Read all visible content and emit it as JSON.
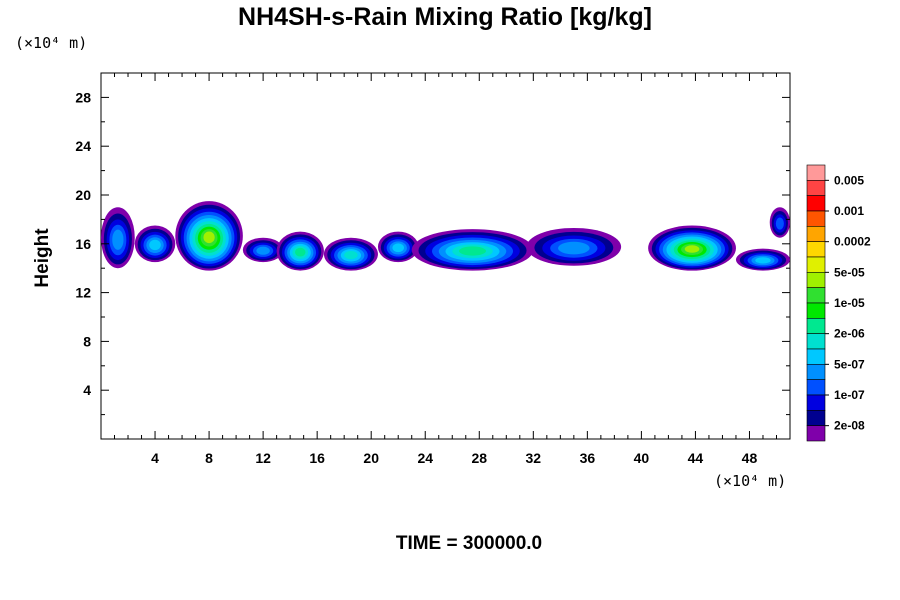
{
  "chart_data": {
    "type": "heatmap",
    "title": "NH4SH-s-Rain Mixing Ratio [kg/kg]",
    "xlabel": "",
    "ylabel": "Height",
    "x_unit": "(×10⁴ m)",
    "y_unit": "(×10⁴ m)",
    "xlim": [
      0,
      51
    ],
    "ylim": [
      0,
      30
    ],
    "x_ticks": [
      "4",
      "8",
      "12",
      "16",
      "20",
      "24",
      "28",
      "32",
      "36",
      "40",
      "44",
      "48"
    ],
    "y_ticks": [
      "4",
      "8",
      "12",
      "16",
      "20",
      "24",
      "28"
    ],
    "time_label": "TIME = 300000.0",
    "legend_labels": [
      "0.005",
      "0.001",
      "0.0002",
      "5e-05",
      "1e-05",
      "2e-06",
      "5e-07",
      "1e-07",
      "2e-08"
    ],
    "colorbar_colors": [
      "#ff9999",
      "#ff4444",
      "#ff0000",
      "#ff5500",
      "#ffa500",
      "#ffd700",
      "#e0f000",
      "#a0f000",
      "#30e030",
      "#00e800",
      "#00e890",
      "#00e0d0",
      "#00c8ff",
      "#0090ff",
      "#0050ff",
      "#0000e0",
      "#000090",
      "#7f00aa"
    ],
    "cloud_bands": [
      {
        "x": [
          0,
          2.5
        ],
        "y": [
          14.0,
          19.0
        ],
        "peak_level": 5
      },
      {
        "x": [
          2.5,
          5.5
        ],
        "y": [
          14.5,
          17.5
        ],
        "peak_level": 6
      },
      {
        "x": [
          5.5,
          10.5
        ],
        "y": [
          13.8,
          19.5
        ],
        "peak_level": 11
      },
      {
        "x": [
          10.5,
          13.5
        ],
        "y": [
          14.5,
          16.5
        ],
        "peak_level": 5
      },
      {
        "x": [
          13.0,
          16.5
        ],
        "y": [
          13.8,
          17.0
        ],
        "peak_level": 8
      },
      {
        "x": [
          16.5,
          20.5
        ],
        "y": [
          13.8,
          16.5
        ],
        "peak_level": 7
      },
      {
        "x": [
          20.5,
          23.5
        ],
        "y": [
          14.5,
          17.0
        ],
        "peak_level": 6
      },
      {
        "x": [
          23.0,
          32.0
        ],
        "y": [
          13.8,
          17.2
        ],
        "peak_level": 8
      },
      {
        "x": [
          31.5,
          38.5
        ],
        "y": [
          14.2,
          17.3
        ],
        "peak_level": 5
      },
      {
        "x": [
          40.5,
          47.0
        ],
        "y": [
          13.8,
          17.5
        ],
        "peak_level": 11
      },
      {
        "x": [
          47.0,
          51.0
        ],
        "y": [
          13.8,
          15.6
        ],
        "peak_level": 6
      },
      {
        "x": [
          49.5,
          51.0
        ],
        "y": [
          16.5,
          19.0
        ],
        "peak_level": 4
      }
    ]
  }
}
